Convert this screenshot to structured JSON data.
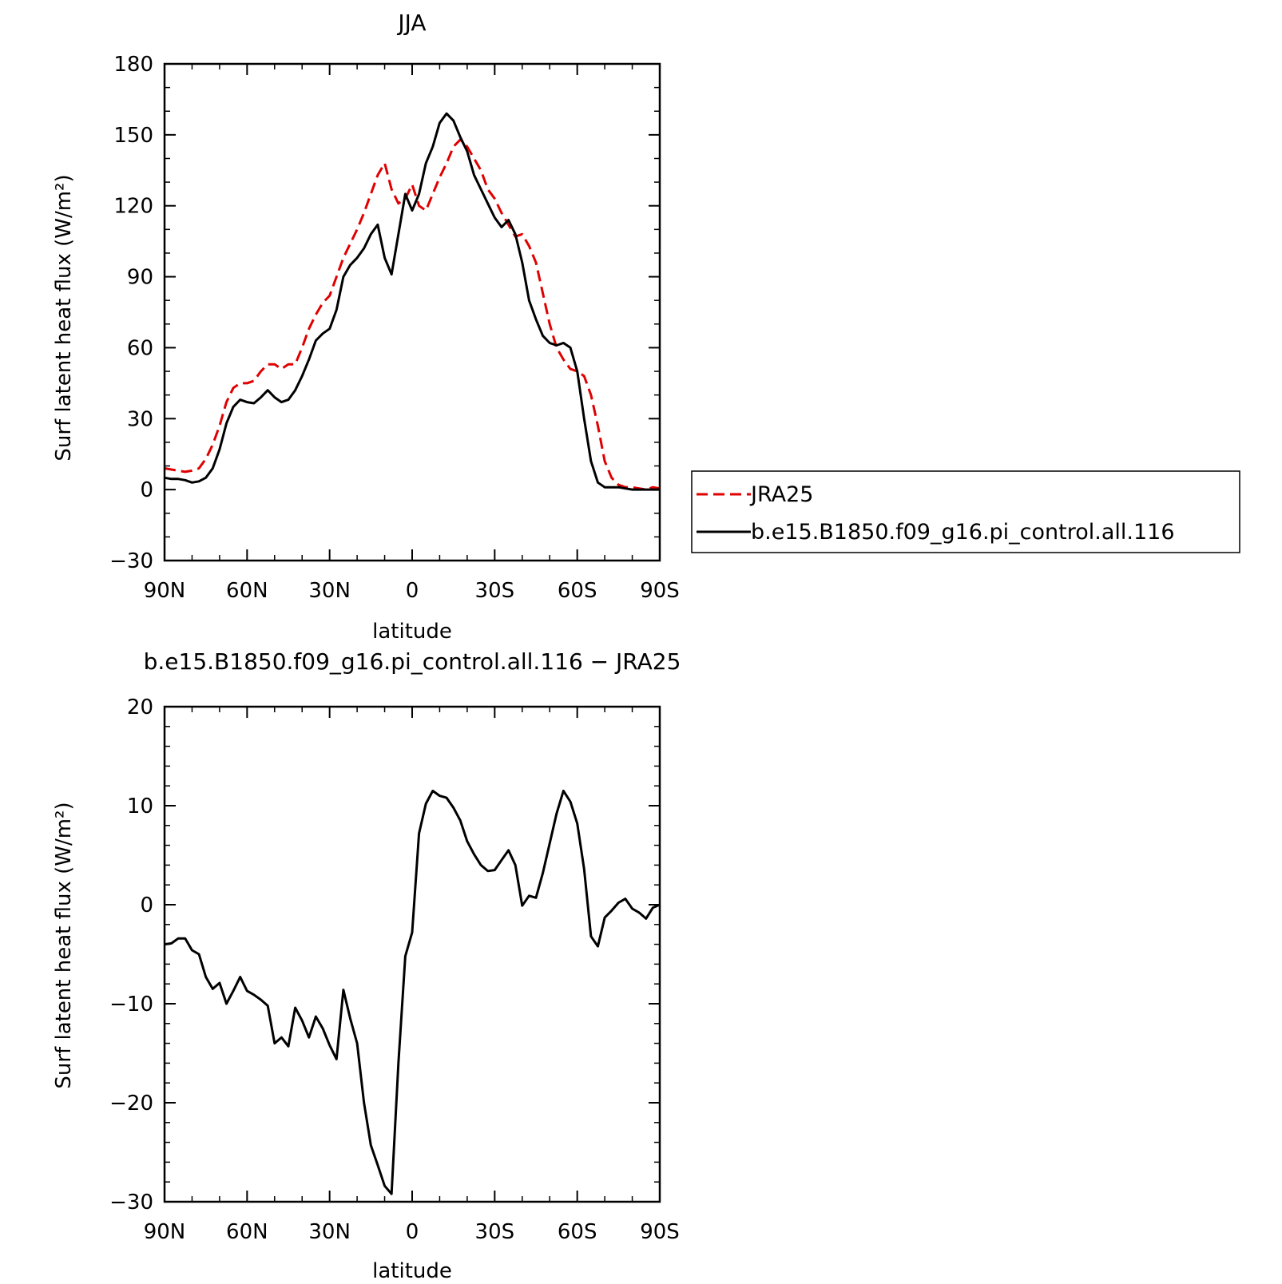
{
  "chart_data": [
    {
      "type": "line",
      "title": "JJA",
      "xlabel": "latitude",
      "ylabel": "Surf latent heat flux (W/m²)",
      "xlim": [
        90,
        -90
      ],
      "ylim": [
        -30,
        180
      ],
      "yticks": [
        -30,
        0,
        30,
        60,
        90,
        120,
        150,
        180
      ],
      "xticks": [
        {
          "value": 90,
          "label": "90N"
        },
        {
          "value": 60,
          "label": "60N"
        },
        {
          "value": 30,
          "label": "30N"
        },
        {
          "value": 0,
          "label": "0"
        },
        {
          "value": -30,
          "label": "30S"
        },
        {
          "value": -60,
          "label": "60S"
        },
        {
          "value": -90,
          "label": "90S"
        }
      ],
      "legend": {
        "position": "right"
      },
      "series": [
        {
          "name": "JRA25",
          "color": "#e00000",
          "style": "dashed",
          "x": [
            90,
            87.5,
            85,
            82.5,
            80,
            77.5,
            75,
            72.5,
            70,
            67.5,
            65,
            62.5,
            60,
            57.5,
            55,
            52.5,
            50,
            47.5,
            45,
            42.5,
            40,
            37.5,
            35,
            32.5,
            30,
            27.5,
            25,
            22.5,
            20,
            17.5,
            15,
            12.5,
            10,
            7.5,
            5,
            2.5,
            0,
            -2.5,
            -5,
            -7.5,
            -10,
            -12.5,
            -15,
            -17.5,
            -20,
            -22.5,
            -25,
            -27.5,
            -30,
            -32.5,
            -35,
            -37.5,
            -40,
            -42.5,
            -45,
            -47.5,
            -50,
            -52.5,
            -55,
            -57.5,
            -60,
            -62.5,
            -65,
            -67.5,
            -70,
            -72.5,
            -75,
            -77.5,
            -80,
            -82.5,
            -85,
            -87.5,
            -90
          ],
          "y": [
            9,
            8.5,
            8,
            7.5,
            8,
            9,
            13,
            19,
            27,
            37,
            43,
            45,
            45,
            46,
            50,
            53,
            53,
            51,
            53,
            53,
            60,
            68,
            74,
            79,
            82,
            90,
            98,
            104,
            110,
            117,
            125,
            133,
            138,
            127,
            121,
            123,
            129,
            120,
            118,
            125,
            132,
            138,
            145,
            148,
            145,
            140,
            135,
            127,
            123,
            117,
            112,
            107,
            108,
            103,
            96,
            83,
            70,
            60,
            55,
            51,
            50,
            48,
            40,
            27,
            12,
            5,
            2,
            1,
            1,
            0.5,
            0,
            1,
            0.5
          ]
        },
        {
          "name": "b.e15.B1850.f09_g16.pi_control.all.116",
          "color": "#000000",
          "style": "solid",
          "x": [
            90,
            87.5,
            85,
            82.5,
            80,
            77.5,
            75,
            72.5,
            70,
            67.5,
            65,
            62.5,
            60,
            57.5,
            55,
            52.5,
            50,
            47.5,
            45,
            42.5,
            40,
            37.5,
            35,
            32.5,
            30,
            27.5,
            25,
            22.5,
            20,
            17.5,
            15,
            12.5,
            10,
            7.5,
            5,
            2.5,
            0,
            -2.5,
            -5,
            -7.5,
            -10,
            -12.5,
            -15,
            -17.5,
            -20,
            -22.5,
            -25,
            -27.5,
            -30,
            -32.5,
            -35,
            -37.5,
            -40,
            -42.5,
            -45,
            -47.5,
            -50,
            -52.5,
            -55,
            -57.5,
            -60,
            -62.5,
            -65,
            -67.5,
            -70,
            -72.5,
            -75,
            -77.5,
            -80,
            -82.5,
            -85,
            -87.5,
            -90
          ],
          "y": [
            5,
            4.5,
            4.5,
            4,
            3,
            3.5,
            5,
            9,
            17,
            28,
            35,
            38,
            37,
            36.5,
            39,
            42,
            39,
            37,
            38,
            42,
            48,
            55,
            63,
            66,
            68,
            76,
            90,
            95,
            98,
            102,
            108,
            112,
            98,
            91,
            108,
            125,
            118,
            125,
            138,
            145,
            155,
            159,
            156,
            149,
            143,
            133,
            127,
            121,
            115,
            111,
            114,
            108,
            96,
            80,
            72,
            65,
            62,
            61,
            62,
            60,
            50,
            30,
            12,
            3,
            1,
            1,
            1,
            0.5,
            0,
            0,
            0,
            0,
            0
          ]
        }
      ]
    },
    {
      "type": "line",
      "title": "b.e15.B1850.f09_g16.pi_control.all.116 − JRA25",
      "xlabel": "latitude",
      "ylabel": "Surf latent heat flux (W/m²)",
      "xlim": [
        90,
        -90
      ],
      "ylim": [
        -30,
        20
      ],
      "yticks": [
        -30,
        -20,
        -10,
        0,
        10,
        20
      ],
      "xticks": [
        {
          "value": 90,
          "label": "90N"
        },
        {
          "value": 60,
          "label": "60N"
        },
        {
          "value": 30,
          "label": "30N"
        },
        {
          "value": 0,
          "label": "0"
        },
        {
          "value": -30,
          "label": "30S"
        },
        {
          "value": -60,
          "label": "60S"
        },
        {
          "value": -90,
          "label": "90S"
        }
      ],
      "series": [
        {
          "color": "#000000",
          "style": "solid",
          "x": [
            90,
            87.5,
            85,
            82.5,
            80,
            77.5,
            75,
            72.5,
            70,
            67.5,
            65,
            62.5,
            60,
            57.5,
            55,
            52.5,
            50,
            47.5,
            45,
            42.5,
            40,
            37.5,
            35,
            32.5,
            30,
            27.5,
            25,
            22.5,
            20,
            17.5,
            15,
            12.5,
            10,
            7.5,
            5,
            2.5,
            0,
            -2.5,
            -5,
            -7.5,
            -10,
            -12.5,
            -15,
            -17.5,
            -20,
            -22.5,
            -25,
            -27.5,
            -30,
            -32.5,
            -35,
            -37.5,
            -40,
            -42.5,
            -45,
            -47.5,
            -50,
            -52.5,
            -55,
            -57.5,
            -60,
            -62.5,
            -65,
            -67.5,
            -70,
            -72.5,
            -75,
            -77.5,
            -80,
            -82.5,
            -85,
            -87.5,
            -90
          ],
          "y": [
            -4,
            -3.9,
            -3.4,
            -3.4,
            -4.6,
            -5,
            -7.3,
            -8.5,
            -7.9,
            -10,
            -8.7,
            -7.3,
            -8.7,
            -9.1,
            -9.6,
            -10.2,
            -14,
            -13.4,
            -14.3,
            -10.4,
            -11.7,
            -13.4,
            -11.3,
            -12.5,
            -14.2,
            -15.6,
            -8.6,
            -11.5,
            -14,
            -20,
            -24.3,
            -26.3,
            -28.4,
            -29.2,
            -16,
            -5.2,
            -2.8,
            7.2,
            10.2,
            11.5,
            11,
            10.8,
            9.8,
            8.5,
            6.4,
            5.1,
            4,
            3.4,
            3.5,
            4.5,
            5.5,
            4,
            -0.1,
            0.9,
            0.7,
            3.2,
            6.2,
            9.2,
            11.5,
            10.4,
            8.2,
            3.6,
            -3.2,
            -4.2,
            -1.3,
            -0.6,
            0.2,
            0.6,
            -0.4,
            -0.8,
            -1.4,
            -0.3,
            0
          ]
        }
      ]
    }
  ]
}
